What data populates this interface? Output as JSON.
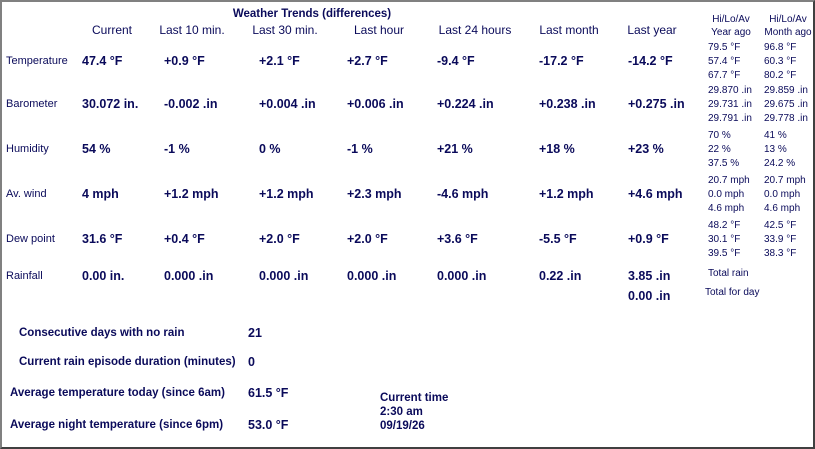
{
  "title": "Weather Trends (differences)",
  "columns": [
    "Current",
    "Last 10 min.",
    "Last 30 min.",
    "Last hour",
    "Last 24 hours",
    "Last month",
    "Last year"
  ],
  "year_ago_header": [
    "Hi/Lo/Av",
    "Year ago"
  ],
  "month_ago_header": [
    "Hi/Lo/Av",
    "Month ago"
  ],
  "rows": [
    {
      "label": "Temperature",
      "values": [
        "47.4 °F",
        "+0.9 °F",
        "+2.1 °F",
        "+2.7 °F",
        "-9.4 °F",
        "-17.2 °F",
        "-14.2 °F"
      ],
      "year_ago": [
        "79.5 °F",
        "57.4 °F",
        "67.7 °F"
      ],
      "month_ago": [
        "96.8 °F",
        "60.3 °F",
        "80.2 °F"
      ]
    },
    {
      "label": "Barometer",
      "values": [
        "30.072 in.",
        "-0.002 .in",
        "+0.004 .in",
        "+0.006 .in",
        "+0.224 .in",
        "+0.238 .in",
        "+0.275 .in"
      ],
      "year_ago": [
        "29.870 .in",
        "29.731 .in",
        "29.791 .in"
      ],
      "month_ago": [
        "29.859 .in",
        "29.675 .in",
        "29.778 .in"
      ]
    },
    {
      "label": "Humidity",
      "values": [
        "54 %",
        "-1 %",
        "0 %",
        "-1 %",
        "+21 %",
        "+18 %",
        "+23 %"
      ],
      "year_ago": [
        "70 %",
        "22 %",
        "37.5 %"
      ],
      "month_ago": [
        "41 %",
        "13 %",
        "24.2 %"
      ]
    },
    {
      "label": "Av. wind",
      "values": [
        "4 mph",
        "+1.2 mph",
        "+1.2 mph",
        "+2.3 mph",
        "-4.6 mph",
        "+1.2 mph",
        "+4.6 mph"
      ],
      "year_ago": [
        "20.7 mph",
        "0.0 mph",
        "4.6 mph"
      ],
      "month_ago": [
        "20.7 mph",
        "0.0 mph",
        "4.6 mph"
      ]
    },
    {
      "label": "Dew point",
      "values": [
        "31.6 °F",
        "+0.4 °F",
        "+2.0 °F",
        "+2.0 °F",
        "+3.6 °F",
        "-5.5 °F",
        "+0.9 °F"
      ],
      "year_ago": [
        "48.2 °F",
        "30.1 °F",
        "39.5 °F"
      ],
      "month_ago": [
        "42.5 °F",
        "33.9 °F",
        "38.3 °F"
      ]
    },
    {
      "label": "Rainfall",
      "values": [
        "0.00 in.",
        "0.000 .in",
        "0.000 .in",
        "0.000 .in",
        "0.000 .in",
        "0.22 .in",
        "3.85 .in"
      ],
      "note": "Total rain"
    }
  ],
  "rain_today": {
    "value": "0.00 .in",
    "note": "Total for day"
  },
  "stats": [
    {
      "label": "Consecutive days with no rain",
      "value": "21"
    },
    {
      "label": "Current rain episode duration (minutes)",
      "value": "0"
    },
    {
      "label": "Average temperature today (since 6am)",
      "value": "61.5 °F"
    },
    {
      "label": "Average night temperature (since 6pm)",
      "value": "53.0 °F"
    }
  ],
  "current_time": {
    "label": "Current time",
    "time": "2:30 am",
    "date": "09/19/26"
  }
}
